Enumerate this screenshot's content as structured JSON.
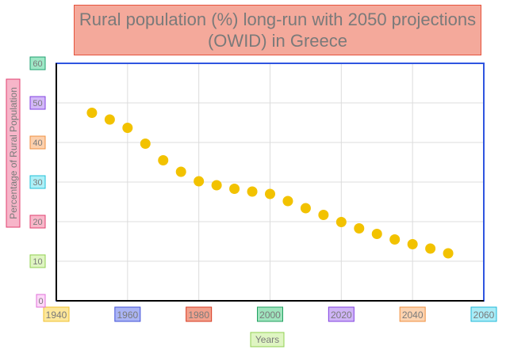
{
  "chart_data": {
    "type": "scatter",
    "title_line1": "Rural population (%) long-run with 2050 projections",
    "title_line2": "(OWID) in Greece",
    "xlabel": "Years",
    "ylabel": "Percentage of Rural Population",
    "xlim": [
      1940,
      2060
    ],
    "ylim": [
      0,
      60
    ],
    "grid": true,
    "x_ticks": [
      {
        "label": "1940",
        "value": 1940,
        "fill": "#fde79a",
        "stroke": "#f0c030"
      },
      {
        "label": "1960",
        "value": 1960,
        "fill": "#aab4f5",
        "stroke": "#4050d8"
      },
      {
        "label": "1980",
        "value": 1980,
        "fill": "#f2a08c",
        "stroke": "#d83a20"
      },
      {
        "label": "2000",
        "value": 2000,
        "fill": "#9ee4bd",
        "stroke": "#20a060"
      },
      {
        "label": "2020",
        "value": 2020,
        "fill": "#cfb4f7",
        "stroke": "#8040e0"
      },
      {
        "label": "2040",
        "value": 2040,
        "fill": "#fcd3b0",
        "stroke": "#f09040"
      },
      {
        "label": "2060",
        "value": 2060,
        "fill": "#a9ecf7",
        "stroke": "#20b8d8"
      }
    ],
    "y_ticks": [
      {
        "label": "0",
        "value": 0,
        "fill": "#fdd8f8",
        "stroke": "#e070d8"
      },
      {
        "label": "10",
        "value": 10,
        "fill": "#dff5c2",
        "stroke": "#90d050"
      },
      {
        "label": "20",
        "value": 20,
        "fill": "#f8b7c9",
        "stroke": "#e04070"
      },
      {
        "label": "30",
        "value": 30,
        "fill": "#aef0f7",
        "stroke": "#20c0d8"
      },
      {
        "label": "40",
        "value": 40,
        "fill": "#fcd0ad",
        "stroke": "#f09040"
      },
      {
        "label": "50",
        "value": 50,
        "fill": "#d3b8f8",
        "stroke": "#8040e0"
      },
      {
        "label": "60",
        "value": 60,
        "fill": "#9ee8c6",
        "stroke": "#20a070"
      }
    ],
    "series": [
      {
        "x": [
          1950,
          1955,
          1960,
          1965,
          1970,
          1975,
          1980,
          1985,
          1990,
          1995,
          2000,
          2005,
          2010,
          2015,
          2020,
          2025,
          2030,
          2035,
          2040,
          2045,
          2050
        ],
        "y": [
          47.5,
          45.8,
          43.7,
          39.7,
          35.5,
          32.6,
          30.2,
          29.2,
          28.3,
          27.6,
          27.0,
          25.2,
          23.4,
          21.7,
          19.9,
          18.3,
          16.9,
          15.5,
          14.3,
          13.2,
          12.0
        ]
      }
    ],
    "colors": {
      "marker": "#f2c200",
      "plot_border": "#2f55e0",
      "grid": "#dcdcdc",
      "title_bg": "#f4a99b",
      "title_border": "#e5533d",
      "ylabel_bg": "#f7b5c9",
      "ylabel_border": "#e04070",
      "xlabel_bg": "#dff5c2",
      "xlabel_border": "#90d050",
      "label_text": "#7a7a7a"
    }
  }
}
